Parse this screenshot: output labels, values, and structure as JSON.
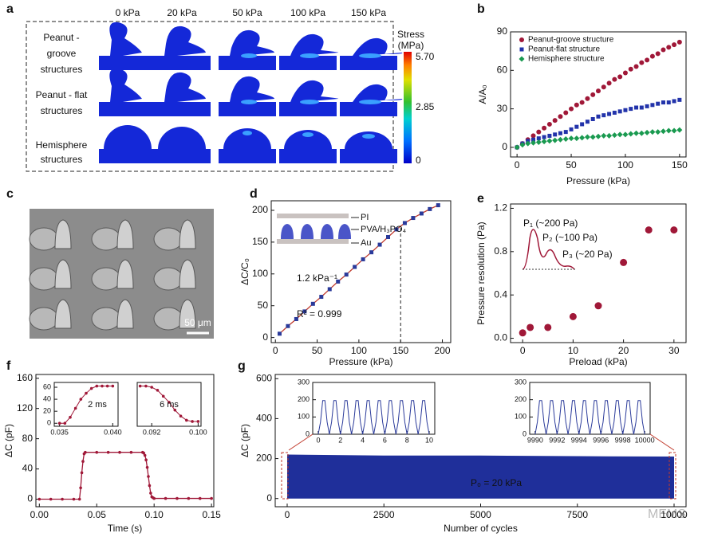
{
  "panel_a": {
    "label": "a",
    "columns": [
      "0 kPa",
      "20 kPa",
      "50 kPa",
      "100 kPa",
      "150 kPa"
    ],
    "rows": [
      [
        "Peanut -",
        "groove",
        "structures"
      ],
      [
        "Peanut - flat",
        "structures"
      ],
      [
        "Hemisphere",
        "structures"
      ]
    ],
    "colorbar": {
      "title": [
        "Stress",
        "(MPa)"
      ],
      "ticks": [
        "5.70",
        "2.85",
        "0"
      ]
    }
  },
  "panel_c": {
    "label": "c",
    "scale_bar": "50 μm"
  },
  "watermark": "MEMS",
  "chart_data": [
    {
      "type": "scatter",
      "panel_label": "b",
      "x_label": "Pressure (kPa)",
      "y_label": "A/A₀",
      "xlim": [
        -6,
        156
      ],
      "ylim": [
        -7.5,
        90
      ],
      "xticks": [
        0,
        50,
        100,
        150
      ],
      "yticks": [
        0,
        30,
        60,
        90
      ],
      "legend": "upper left",
      "x": [
        0,
        5,
        10,
        15,
        20,
        25,
        30,
        35,
        40,
        45,
        50,
        55,
        60,
        65,
        70,
        75,
        80,
        85,
        90,
        95,
        100,
        105,
        110,
        115,
        120,
        125,
        130,
        135,
        140,
        145,
        150
      ],
      "series": [
        {
          "name": "Peanut-groove structure",
          "color": "#a01838",
          "marker": "circle",
          "values": [
            0,
            3,
            6,
            9,
            12,
            15,
            18,
            21,
            24,
            27,
            30,
            33,
            35,
            38,
            41,
            44,
            47,
            50,
            53,
            55,
            58,
            61,
            63,
            66,
            68,
            71,
            73,
            76,
            78,
            80,
            82
          ]
        },
        {
          "name": "Peanut-flat structure",
          "color": "#2233aa",
          "marker": "square",
          "values": [
            0,
            3,
            5,
            6,
            7,
            8,
            9,
            10,
            11,
            12,
            14,
            16,
            18,
            20,
            22,
            24,
            25,
            26,
            27,
            28,
            29,
            30,
            31,
            31,
            32,
            33,
            34,
            35,
            35,
            36,
            37
          ]
        },
        {
          "name": "Hemisphere structure",
          "color": "#1a9a50",
          "marker": "diamond",
          "values": [
            0,
            2,
            3,
            3.5,
            4,
            4.5,
            5,
            5.5,
            6,
            6.5,
            7,
            7,
            7.5,
            8,
            8,
            8.5,
            9,
            9,
            9.5,
            10,
            10,
            10.5,
            11,
            11,
            11.5,
            12,
            12,
            12.5,
            13,
            13,
            13.5
          ]
        }
      ]
    },
    {
      "type": "scatter",
      "panel_label": "d",
      "x_label": "Pressure (kPa)",
      "y_label": "ΔC/C₀",
      "xlim": [
        -5,
        210
      ],
      "ylim": [
        -8,
        215
      ],
      "xticks": [
        0,
        50,
        100,
        150,
        200
      ],
      "yticks": [
        0,
        50,
        100,
        150,
        200
      ],
      "vline": 150,
      "annotations": [
        "1.2 kPa⁻¹",
        "R² = 0.999"
      ],
      "inset_labels": [
        "PI",
        "PVA/H₃PO₄",
        "Au"
      ],
      "x": [
        5,
        15,
        25,
        35,
        45,
        55,
        65,
        75,
        85,
        95,
        105,
        115,
        125,
        135,
        145,
        155,
        165,
        175,
        185,
        195
      ],
      "series": [
        {
          "name": null,
          "color": "#2a3a9a",
          "marker": "square",
          "line_color": "#c0392b",
          "values": [
            6,
            18,
            29,
            41,
            53,
            64,
            76,
            88,
            99,
            111,
            123,
            134,
            146,
            158,
            170,
            180,
            188,
            195,
            202,
            208
          ]
        }
      ]
    },
    {
      "type": "scatter",
      "panel_label": "e",
      "x_label": "Preload (kPa)",
      "y_label": "Pressure resolution (Pa)",
      "xlim": [
        -2.4,
        32.4
      ],
      "ylim": [
        -0.04,
        1.24
      ],
      "xticks": [
        0,
        10,
        20,
        30
      ],
      "yticks": [
        {
          "value": 0,
          "label": "0.0"
        },
        0.4,
        0.8,
        1.2
      ],
      "annotations": [
        "P₁ (~200 Pa)",
        "P₂ (~100 Pa)",
        "P₃ (~20 Pa)"
      ],
      "x": [
        0,
        1.5,
        5,
        10,
        15,
        20,
        25,
        30
      ],
      "series": [
        {
          "name": null,
          "color": "#a01838",
          "marker": "ball",
          "values": [
            0.05,
            0.1,
            0.1,
            0.2,
            0.3,
            0.7,
            1.0,
            1.0
          ]
        }
      ]
    },
    {
      "type": "line",
      "panel_label": "f",
      "x_label": "Time (s)",
      "y_label": "ΔC (pF)",
      "xlim": [
        -0.003,
        0.152
      ],
      "ylim": [
        -10,
        165
      ],
      "xticks": [
        {
          "value": 0,
          "label": "0.00"
        },
        {
          "value": 0.05,
          "label": "0.05"
        },
        {
          "value": 0.1,
          "label": "0.10"
        },
        {
          "value": 0.15,
          "label": "0.15"
        }
      ],
      "yticks": [
        0,
        40,
        80,
        120,
        160
      ],
      "x": [
        0,
        0.01,
        0.02,
        0.03,
        0.035,
        0.036,
        0.037,
        0.038,
        0.039,
        0.04,
        0.05,
        0.06,
        0.07,
        0.08,
        0.09,
        0.091,
        0.092,
        0.093,
        0.094,
        0.095,
        0.096,
        0.097,
        0.098,
        0.099,
        0.1,
        0.11,
        0.12,
        0.13,
        0.14,
        0.15
      ],
      "series": [
        {
          "name": null,
          "color": "#a01838",
          "marker": "dot",
          "values": [
            0,
            0,
            0,
            0,
            0,
            15,
            35,
            50,
            60,
            62,
            62,
            62,
            62,
            62,
            62,
            61,
            58,
            52,
            42,
            30,
            18,
            8,
            3,
            2,
            1,
            1,
            1,
            1,
            1,
            1
          ]
        }
      ]
    },
    {
      "type": "line",
      "xlim": [
        0.0345,
        0.0405
      ],
      "ylim": [
        -5,
        68
      ],
      "xticks": [
        {
          "value": 0.035,
          "label": "0.035"
        },
        {
          "value": 0.04,
          "label": "0.040"
        }
      ],
      "yticks": [
        0,
        20,
        40,
        60
      ],
      "annotations": [
        "2 ms"
      ],
      "x": [
        0.035,
        0.0355,
        0.036,
        0.0365,
        0.037,
        0.0375,
        0.038,
        0.0385,
        0.039,
        0.0395,
        0.04
      ],
      "series": [
        {
          "name": null,
          "color": "#a01838",
          "marker": "dot",
          "values": [
            0,
            0,
            10,
            25,
            40,
            50,
            58,
            62,
            62,
            62,
            62
          ]
        }
      ]
    },
    {
      "type": "line",
      "xlim": [
        0.0895,
        0.1005
      ],
      "ylim": [
        -5,
        68
      ],
      "xticks": [
        {
          "value": 0.092,
          "label": "0.092"
        },
        {
          "value": 0.1,
          "label": "0.100"
        }
      ],
      "yticks": [],
      "annotations": [
        "6 ms"
      ],
      "x": [
        0.09,
        0.091,
        0.092,
        0.093,
        0.094,
        0.095,
        0.096,
        0.097,
        0.098,
        0.099,
        0.1
      ],
      "series": [
        {
          "name": null,
          "color": "#a01838",
          "marker": "dot",
          "values": [
            62,
            62,
            60,
            55,
            45,
            35,
            22,
            12,
            5,
            3,
            3
          ]
        }
      ]
    },
    {
      "type": "area",
      "panel_label": "g",
      "x_label": "Number of cycles",
      "y_label": "ΔC (pF)",
      "xlim": [
        -309,
        10309
      ],
      "ylim": [
        -41,
        621
      ],
      "xticks": [
        0,
        2500,
        5000,
        7500,
        10000
      ],
      "yticks": [
        0,
        200,
        400,
        600
      ],
      "annotations": [
        "P₀ = 20 kPa"
      ],
      "x": [
        0,
        2500,
        5000,
        7500,
        10000
      ],
      "series": [
        {
          "name": null,
          "color": "#1f2f9a",
          "values": [
            220,
            215,
            215,
            212,
            210
          ]
        }
      ]
    },
    {
      "type": "line",
      "xlim": [
        -0.5,
        10.5
      ],
      "ylim": [
        0,
        300
      ],
      "xticks": [
        0,
        2,
        4,
        6,
        8,
        10
      ],
      "yticks": [
        0,
        100,
        200,
        300
      ],
      "x": [
        0,
        0.2,
        0.4,
        0.6,
        0.8,
        1,
        1.2,
        1.4,
        1.6,
        1.8,
        2,
        2.2,
        2.4,
        2.6,
        2.8,
        3,
        3.2,
        3.4,
        3.6,
        3.8,
        4,
        4.2,
        4.4,
        4.6,
        4.8,
        5,
        5.2,
        5.4,
        5.6,
        5.8,
        6,
        6.2,
        6.4,
        6.6,
        6.8,
        7,
        7.2,
        7.4,
        7.6,
        7.8,
        8,
        8.2,
        8.4,
        8.6,
        8.8,
        9,
        9.2,
        9.4,
        9.6,
        9.8,
        10
      ],
      "series": [
        {
          "name": null,
          "color": "#2a3a9a",
          "values": [
            0,
            70,
            195,
            195,
            70,
            0,
            70,
            195,
            195,
            70,
            0,
            70,
            195,
            195,
            70,
            0,
            70,
            195,
            195,
            70,
            0,
            70,
            195,
            195,
            70,
            0,
            70,
            195,
            195,
            70,
            0,
            70,
            195,
            195,
            70,
            0,
            70,
            195,
            195,
            70,
            0,
            70,
            195,
            195,
            70,
            0,
            70,
            195,
            195,
            70,
            0
          ]
        }
      ]
    },
    {
      "type": "line",
      "xlim": [
        9989.5,
        10000.5
      ],
      "ylim": [
        0,
        300
      ],
      "xticks": [
        9990,
        9992,
        9994,
        9996,
        9998,
        10000
      ],
      "yticks": [
        0,
        100,
        200,
        300
      ],
      "x": [
        9990,
        9990.2,
        9990.4,
        9990.6,
        9990.8,
        9991,
        9991.2,
        9991.4,
        9991.6,
        9991.8,
        9992,
        9992.2,
        9992.4,
        9992.6,
        9992.8,
        9993,
        9993.2,
        9993.4,
        9993.6,
        9993.8,
        9994,
        9994.2,
        9994.4,
        9994.6,
        9994.8,
        9995,
        9995.2,
        9995.4,
        9995.6,
        9995.8,
        9996,
        9996.2,
        9996.4,
        9996.6,
        9996.8,
        9997,
        9997.2,
        9997.4,
        9997.6,
        9997.8,
        9998,
        9998.2,
        9998.4,
        9998.6,
        9998.8,
        9999,
        9999.2,
        9999.4,
        9999.6,
        9999.8,
        10000
      ],
      "series": [
        {
          "name": null,
          "color": "#2a3a9a",
          "values": [
            0,
            70,
            195,
            195,
            70,
            0,
            70,
            195,
            195,
            70,
            0,
            70,
            195,
            195,
            70,
            0,
            70,
            195,
            195,
            70,
            0,
            70,
            195,
            195,
            70,
            0,
            70,
            195,
            195,
            70,
            0,
            70,
            195,
            195,
            70,
            0,
            70,
            195,
            195,
            70,
            0,
            70,
            195,
            195,
            70,
            0,
            70,
            195,
            195,
            70,
            0
          ]
        }
      ]
    }
  ]
}
